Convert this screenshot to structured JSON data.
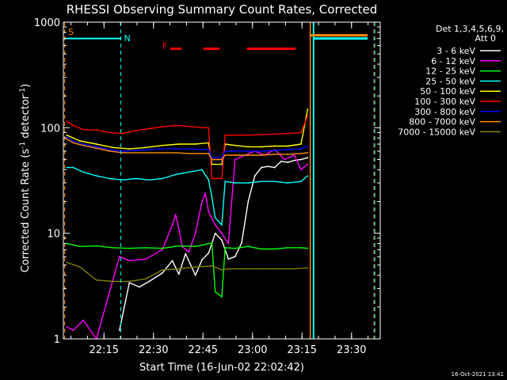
{
  "chart_data": {
    "type": "line",
    "title": "RHESSI Observing Summary Count Rates, Corrected",
    "xlabel": "Start Time (16-Jun-02 22:02:42)",
    "ylabel_main": "Corrected Count Rate (s",
    "ylabel_sup1": "-1",
    "ylabel_mid": " detector",
    "ylabel_sup2": "-1",
    "ylabel_end": ")",
    "yscale": "log",
    "ylim": [
      1,
      1000
    ],
    "xlim_minutes": [
      0,
      96
    ],
    "x_ticks": [
      {
        "min": 12.3,
        "label": "22:15"
      },
      {
        "min": 27.3,
        "label": "22:30"
      },
      {
        "min": 42.3,
        "label": "22:45"
      },
      {
        "min": 57.3,
        "label": "23:00"
      },
      {
        "min": 72.3,
        "label": "23:15"
      },
      {
        "min": 87.3,
        "label": "23:30"
      }
    ],
    "y_ticks": [
      {
        "value": 1,
        "label": "1"
      },
      {
        "value": 10,
        "label": "10"
      },
      {
        "value": 100,
        "label": "100"
      },
      {
        "value": 1000,
        "label": "1000"
      }
    ],
    "legend_title": [
      "Det 1,3,4,5,6,9,",
      "Att 0"
    ],
    "legend_position": "right",
    "timestamp": "16-Oct-2021 13:41",
    "flags": {
      "S_label": "S",
      "N_label": "N",
      "F_label": "F",
      "S_color": "#ff8c00",
      "N_color": "#00ffff",
      "F_color": "#ff0000",
      "S_value": 750,
      "N_value": 700
    },
    "segments": {
      "day1_end_min": 17.4,
      "night1_start_min": 17.4,
      "night1_end_min": 74.8,
      "saa_start_min": 75.8,
      "saa_end_min": 77.4,
      "night2_start_min": 94.1,
      "flare_bars_min": [
        [
          32.4,
          35.8
        ],
        [
          42.4,
          47.3
        ],
        [
          55.6,
          70.3
        ]
      ],
      "attenuator_dips_min": [
        [
          44.3,
          48.6
        ]
      ]
    },
    "series": [
      {
        "name": "3 - 6 keV",
        "color": "#ffffff",
        "x": [
          1,
          10,
          17,
          20,
          23,
          26,
          30,
          33,
          35,
          37,
          40,
          42,
          44,
          46,
          48,
          50,
          52,
          54,
          56,
          58,
          60,
          62,
          64,
          66,
          68,
          70,
          72,
          74
        ],
        "y": [
          0,
          0,
          1.2,
          3.4,
          3.1,
          3.5,
          4.2,
          5.5,
          4.1,
          6.4,
          4.0,
          5.6,
          6.5,
          10,
          8.6,
          5.7,
          6.0,
          8.1,
          20,
          35,
          42,
          43,
          42,
          48,
          47,
          49,
          50,
          52
        ]
      },
      {
        "name": "6 - 12 keV",
        "color": "#ff00ff",
        "x": [
          1,
          3,
          6,
          10,
          17,
          20,
          25,
          30,
          33,
          34,
          35,
          36,
          38,
          40,
          42,
          43,
          44,
          46,
          48,
          50,
          52,
          55,
          58,
          61,
          64,
          67,
          70,
          72,
          74
        ],
        "y": [
          1.3,
          1.2,
          1.5,
          1.0,
          6,
          5.5,
          5.7,
          7,
          12,
          15,
          11,
          7.5,
          6.6,
          10,
          20,
          24,
          16,
          12,
          10,
          8,
          50,
          55,
          60,
          55,
          62,
          50,
          55,
          40,
          45
        ]
      },
      {
        "name": "12 - 25 keV",
        "color": "#00ff00",
        "x": [
          1,
          5,
          10,
          15,
          20,
          25,
          30,
          35,
          40,
          45,
          46,
          48,
          49,
          52,
          56,
          60,
          64,
          68,
          72,
          74
        ],
        "y": [
          8,
          7.5,
          7.6,
          7.3,
          7.2,
          7.3,
          7.2,
          7.6,
          7.5,
          8.1,
          2.8,
          2.5,
          7.3,
          7.2,
          7.5,
          7.1,
          7.1,
          7.3,
          7.3,
          7.2
        ]
      },
      {
        "name": "25 - 50 keV",
        "color": "#00ffff",
        "x": [
          1,
          3,
          6,
          10,
          14,
          18,
          22,
          26,
          30,
          34,
          38,
          42,
          44,
          45,
          46,
          48,
          49,
          52,
          56,
          60,
          64,
          68,
          72,
          74
        ],
        "y": [
          42,
          42,
          38,
          35,
          33,
          32,
          33,
          32,
          33,
          36,
          38,
          40,
          32,
          22,
          14,
          12,
          31,
          30,
          30,
          31,
          31,
          30,
          31,
          35
        ]
      },
      {
        "name": "50 - 100 keV",
        "color": "#ffff00",
        "x": [
          1,
          5,
          10,
          15,
          20,
          25,
          30,
          35,
          40,
          44,
          45,
          48,
          49,
          52,
          56,
          60,
          64,
          68,
          72,
          74
        ],
        "y": [
          85,
          75,
          70,
          65,
          63,
          65,
          68,
          70,
          70,
          72,
          45,
          45,
          70,
          68,
          66,
          66,
          67,
          67,
          70,
          150
        ]
      },
      {
        "name": "100 - 300 keV",
        "color": "#ff0000",
        "x": [
          1,
          3,
          6,
          10,
          14,
          18,
          22,
          26,
          30,
          34,
          38,
          42,
          44,
          45,
          48,
          49,
          52,
          56,
          60,
          64,
          68,
          72,
          74
        ],
        "y": [
          115,
          105,
          96,
          95,
          90,
          88,
          94,
          98,
          102,
          105,
          103,
          100,
          100,
          33,
          33,
          85,
          85,
          85,
          86,
          87,
          88,
          90,
          130
        ]
      },
      {
        "name": "300 - 800 keV",
        "color": "#0000ff",
        "x": [
          1,
          3,
          6,
          10,
          14,
          18,
          22,
          26,
          30,
          34,
          38,
          42,
          44,
          45,
          48,
          49,
          52,
          56,
          60,
          64,
          68,
          72,
          74
        ],
        "y": [
          82,
          75,
          70,
          66,
          62,
          60,
          61,
          62,
          63,
          63,
          63,
          62,
          62,
          52,
          52,
          60,
          60,
          60,
          60,
          61,
          62,
          63,
          67
        ]
      },
      {
        "name": "800 - 7000 keV",
        "color": "#ff8c00",
        "x": [
          1,
          3,
          6,
          10,
          14,
          18,
          22,
          26,
          30,
          34,
          38,
          42,
          44,
          45,
          48,
          49,
          52,
          56,
          60,
          64,
          68,
          72,
          74
        ],
        "y": [
          78,
          72,
          68,
          64,
          60,
          58,
          58,
          58,
          58,
          58,
          57,
          57,
          57,
          50,
          50,
          55,
          55,
          55,
          55,
          56,
          56,
          57,
          58
        ]
      },
      {
        "name": "7000 - 15000 keV",
        "color": "#808000",
        "x": [
          1,
          5,
          10,
          15,
          20,
          25,
          30,
          35,
          40,
          45,
          48,
          50,
          55,
          60,
          65,
          70,
          74
        ],
        "y": [
          5.3,
          4.8,
          3.6,
          3.5,
          3.5,
          3.7,
          4.5,
          4.6,
          4.8,
          4.9,
          4.5,
          4.6,
          4.6,
          4.6,
          4.6,
          4.6,
          4.7
        ]
      }
    ]
  }
}
